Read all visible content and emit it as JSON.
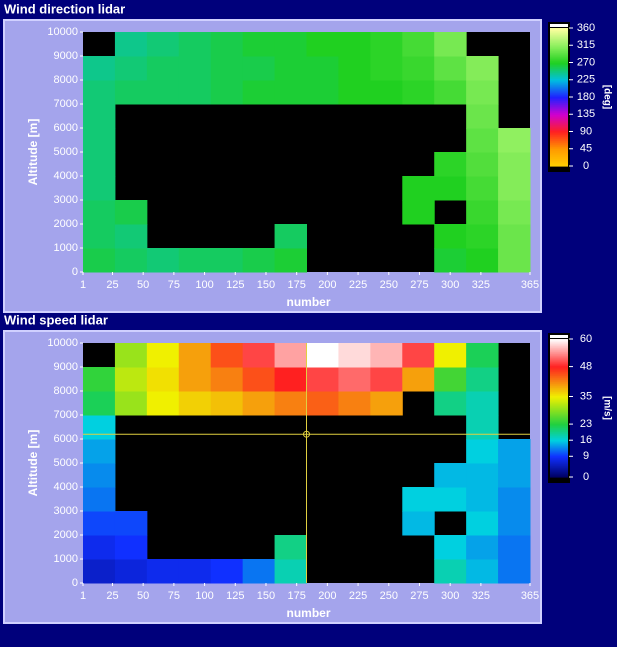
{
  "chart_data": [
    {
      "type": "heatmap",
      "title": "Wind direction lidar",
      "xlabel": "number",
      "ylabel": "Altitude [m]",
      "zlabel": "[deg]",
      "xlim": [
        1,
        365
      ],
      "xticks": [
        1,
        25,
        50,
        75,
        100,
        125,
        150,
        175,
        200,
        225,
        250,
        275,
        300,
        325,
        365
      ],
      "ylim": [
        0,
        10000
      ],
      "yticks": [
        0,
        1000,
        2000,
        3000,
        4000,
        5000,
        6000,
        7000,
        8000,
        9000,
        10000
      ],
      "zlim": [
        0,
        360
      ],
      "zticks": [
        0,
        45,
        90,
        135,
        180,
        225,
        270,
        315,
        360
      ],
      "colormap": [
        {
          "value": 0,
          "color": "#ffd000"
        },
        {
          "value": 45,
          "color": "#ff9a00"
        },
        {
          "value": 90,
          "color": "#ff2020"
        },
        {
          "value": 135,
          "color": "#d000d0"
        },
        {
          "value": 180,
          "color": "#2020ff"
        },
        {
          "value": 225,
          "color": "#00c0e0"
        },
        {
          "value": 270,
          "color": "#20d020"
        },
        {
          "value": 315,
          "color": "#90f060"
        },
        {
          "value": 360,
          "color": "#ffffa0"
        }
      ],
      "xbins": [
        1,
        27,
        53,
        79,
        105,
        131,
        157,
        183,
        209,
        235,
        261,
        287,
        313,
        339,
        365
      ],
      "ybins": [
        0,
        1000,
        2000,
        3000,
        4000,
        5000,
        6000,
        7000,
        8000,
        9000,
        10000
      ],
      "z": [
        [
          260,
          255,
          250,
          255,
          255,
          260,
          265,
          null,
          null,
          null,
          null,
          265,
          270,
          300
        ],
        [
          255,
          250,
          null,
          null,
          null,
          null,
          255,
          null,
          null,
          null,
          null,
          270,
          275,
          300
        ],
        [
          255,
          260,
          null,
          null,
          null,
          null,
          null,
          null,
          null,
          null,
          270,
          null,
          280,
          305
        ],
        [
          250,
          null,
          null,
          null,
          null,
          null,
          null,
          null,
          null,
          null,
          270,
          270,
          285,
          310
        ],
        [
          250,
          null,
          null,
          null,
          null,
          null,
          null,
          null,
          null,
          null,
          null,
          275,
          290,
          310
        ],
        [
          250,
          null,
          null,
          null,
          null,
          null,
          null,
          null,
          null,
          null,
          null,
          null,
          295,
          315
        ],
        [
          250,
          null,
          null,
          null,
          null,
          null,
          null,
          null,
          null,
          null,
          null,
          null,
          300,
          null
        ],
        [
          250,
          255,
          255,
          255,
          260,
          265,
          265,
          265,
          270,
          270,
          275,
          285,
          305,
          null
        ],
        [
          245,
          250,
          255,
          255,
          260,
          260,
          265,
          265,
          270,
          275,
          280,
          295,
          310,
          null
        ],
        [
          null,
          245,
          250,
          255,
          260,
          265,
          265,
          270,
          270,
          275,
          285,
          305,
          null,
          null
        ]
      ]
    },
    {
      "type": "heatmap",
      "title": "Wind speed lidar",
      "xlabel": "number",
      "ylabel": "Altitude [m]",
      "zlabel": "[m/s]",
      "xlim": [
        1,
        365
      ],
      "xticks": [
        1,
        25,
        50,
        75,
        100,
        125,
        150,
        175,
        200,
        225,
        250,
        275,
        300,
        325,
        365
      ],
      "ylim": [
        0,
        10000
      ],
      "yticks": [
        0,
        1000,
        2000,
        3000,
        4000,
        5000,
        6000,
        7000,
        8000,
        9000,
        10000
      ],
      "zlim": [
        0,
        60
      ],
      "zticks": [
        0,
        9,
        16,
        23,
        35,
        48,
        60
      ],
      "colormap": [
        {
          "value": 0,
          "color": "#000060"
        },
        {
          "value": 9,
          "color": "#1030ff"
        },
        {
          "value": 16,
          "color": "#00d0e0"
        },
        {
          "value": 23,
          "color": "#20d040"
        },
        {
          "value": 35,
          "color": "#f0f000"
        },
        {
          "value": 48,
          "color": "#ff2020"
        },
        {
          "value": 60,
          "color": "#ffffff"
        }
      ],
      "xbins": [
        1,
        27,
        53,
        79,
        105,
        131,
        157,
        183,
        209,
        235,
        261,
        287,
        313,
        339,
        365
      ],
      "ybins": [
        0,
        1000,
        2000,
        3000,
        4000,
        5000,
        6000,
        7000,
        8000,
        9000,
        10000
      ],
      "z": [
        [
          6,
          7,
          8,
          8,
          9,
          12,
          18,
          null,
          null,
          null,
          null,
          18,
          15,
          12
        ],
        [
          8,
          9,
          null,
          null,
          null,
          null,
          20,
          null,
          null,
          null,
          null,
          16,
          14,
          12
        ],
        [
          10,
          10,
          null,
          null,
          null,
          null,
          null,
          null,
          null,
          null,
          15,
          null,
          16,
          13
        ],
        [
          12,
          null,
          null,
          null,
          null,
          null,
          null,
          null,
          null,
          null,
          16,
          16,
          15,
          13
        ],
        [
          13,
          null,
          null,
          null,
          null,
          null,
          null,
          null,
          null,
          null,
          null,
          15,
          15,
          14
        ],
        [
          14,
          null,
          null,
          null,
          null,
          null,
          null,
          null,
          null,
          null,
          null,
          null,
          16,
          14
        ],
        [
          16,
          null,
          null,
          null,
          null,
          null,
          null,
          null,
          null,
          null,
          null,
          null,
          18,
          null
        ],
        [
          22,
          30,
          35,
          37,
          38,
          40,
          42,
          44,
          42,
          40,
          null,
          20,
          18,
          null
        ],
        [
          24,
          32,
          36,
          40,
          42,
          45,
          48,
          50,
          52,
          50,
          40,
          25,
          20,
          null
        ],
        [
          null,
          30,
          35,
          40,
          45,
          50,
          55,
          60,
          58,
          56,
          50,
          35,
          22,
          null
        ]
      ],
      "cursor": {
        "x": 183,
        "y": 6200,
        "color": "#e0d040"
      }
    }
  ]
}
